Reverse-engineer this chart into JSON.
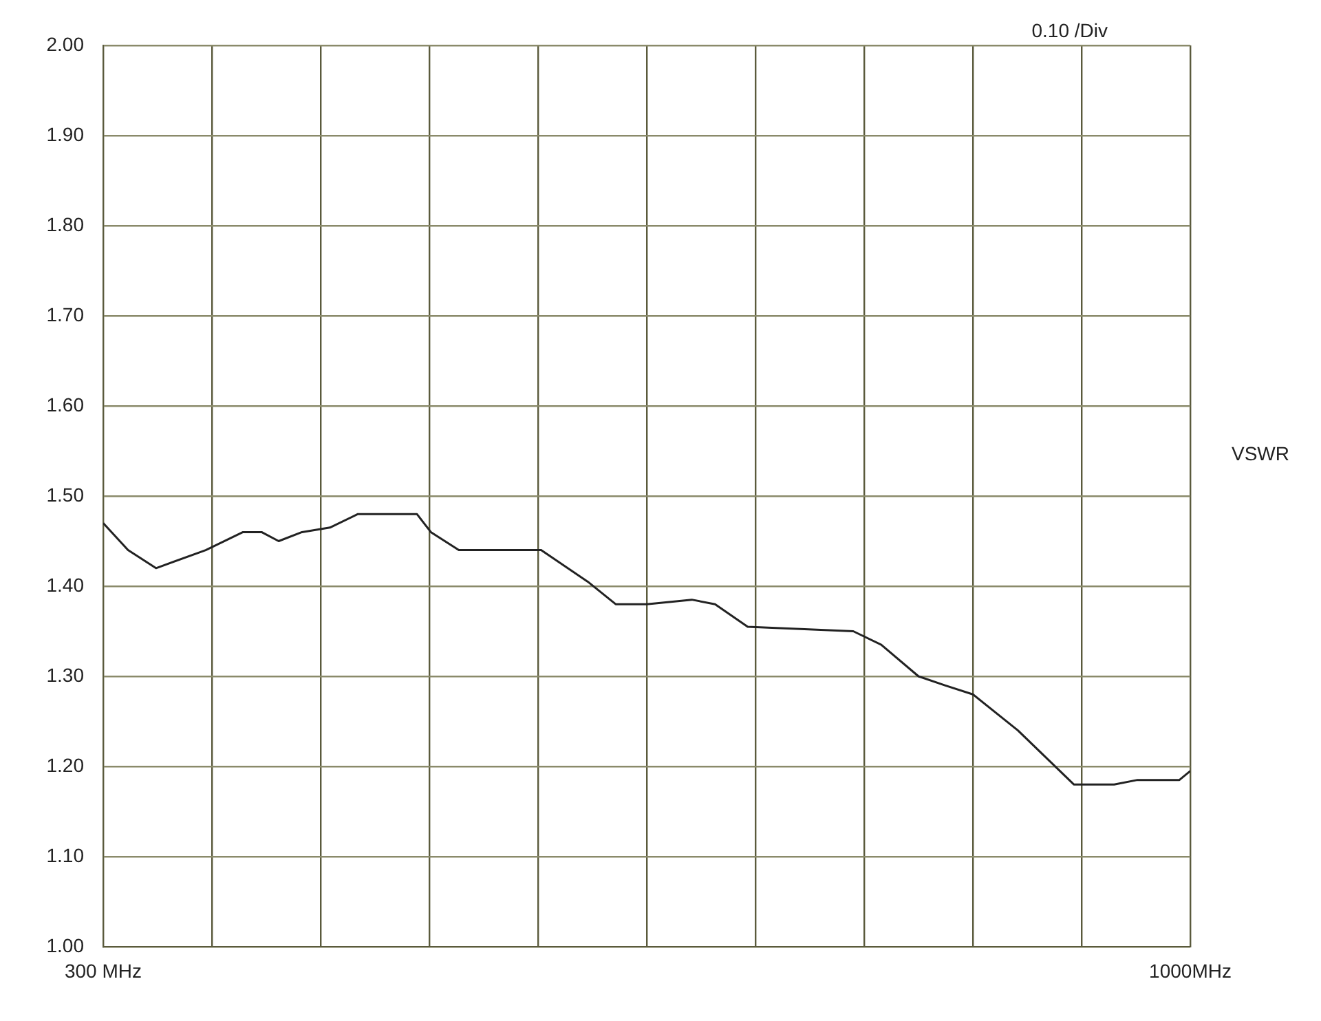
{
  "chart_data": {
    "type": "line",
    "ylabel": "VSWR",
    "annotations": [
      "0.10 /Div"
    ],
    "x": [
      300,
      316,
      334,
      366,
      390,
      402,
      413,
      428,
      446,
      464,
      479,
      502,
      511,
      529,
      553,
      568,
      582,
      612,
      630,
      650,
      679,
      694,
      715,
      783,
      801,
      825,
      842,
      860,
      889,
      907,
      925,
      951,
      966,
      993,
      1000
    ],
    "series": [
      {
        "color": "#222222",
        "values": [
          1.47,
          1.44,
          1.42,
          1.44,
          1.46,
          1.46,
          1.45,
          1.46,
          1.465,
          1.48,
          1.48,
          1.48,
          1.46,
          1.44,
          1.44,
          1.44,
          1.44,
          1.405,
          1.38,
          1.38,
          1.385,
          1.38,
          1.355,
          1.35,
          1.335,
          1.3,
          1.29,
          1.28,
          1.24,
          1.21,
          1.18,
          1.18,
          1.185,
          1.185,
          1.195
        ]
      }
    ],
    "xlim": [
      300,
      1000
    ],
    "xticks": [
      {
        "value": 300,
        "label": "300 MHz"
      },
      {
        "value": 370,
        "label": null
      },
      {
        "value": 440,
        "label": null
      },
      {
        "value": 510,
        "label": null
      },
      {
        "value": 580,
        "label": null
      },
      {
        "value": 650,
        "label": null
      },
      {
        "value": 720,
        "label": null
      },
      {
        "value": 790,
        "label": null
      },
      {
        "value": 860,
        "label": null
      },
      {
        "value": 930,
        "label": null
      },
      {
        "value": 1000,
        "label": "1000MHz"
      }
    ],
    "ylim": [
      1,
      2
    ],
    "yticks": [
      {
        "value": 1,
        "label": "1.00"
      },
      {
        "value": 1.1,
        "label": "1.10"
      },
      {
        "value": 1.2,
        "label": "1.20"
      },
      {
        "value": 1.3,
        "label": "1.30"
      },
      {
        "value": 1.4,
        "label": "1.40"
      },
      {
        "value": 1.5,
        "label": "1.50"
      },
      {
        "value": 1.6,
        "label": "1.60"
      },
      {
        "value": 1.7,
        "label": "1.70"
      },
      {
        "value": 1.8,
        "label": "1.80"
      },
      {
        "value": 1.9,
        "label": "1.90"
      },
      {
        "value": 2,
        "label": "2.00"
      }
    ],
    "grid": true,
    "legend": false,
    "marker": "none",
    "line_style": "solid"
  }
}
